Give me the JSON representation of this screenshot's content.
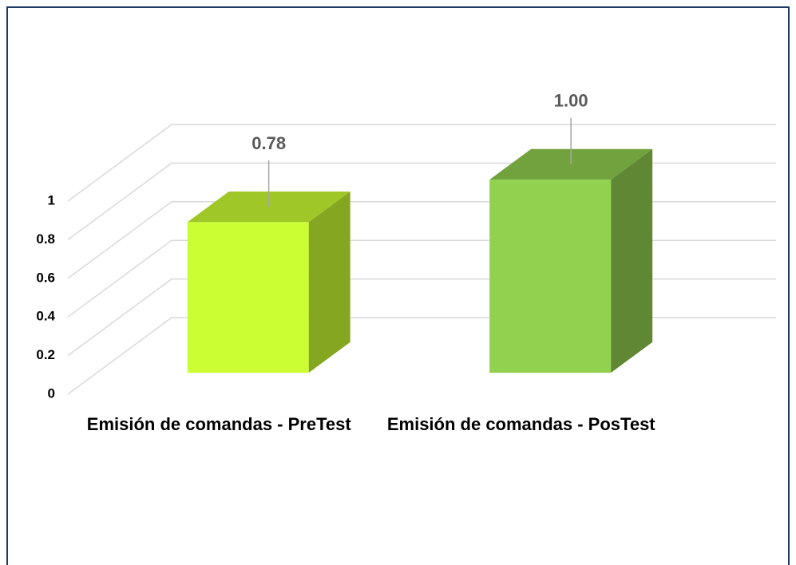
{
  "chart_data": {
    "type": "bar3d",
    "categories": [
      "Emisión de comandas - PreTest",
      "Emisión de comandas - PosTest"
    ],
    "values": [
      0.78,
      1.0
    ],
    "value_labels": [
      "0.78",
      "1.00"
    ],
    "colors": [
      "#ccff33",
      "#92d050"
    ],
    "ylim": [
      0,
      1
    ],
    "yticks": [
      0,
      0.2,
      0.4,
      0.6,
      0.8,
      1
    ],
    "grid": true
  }
}
